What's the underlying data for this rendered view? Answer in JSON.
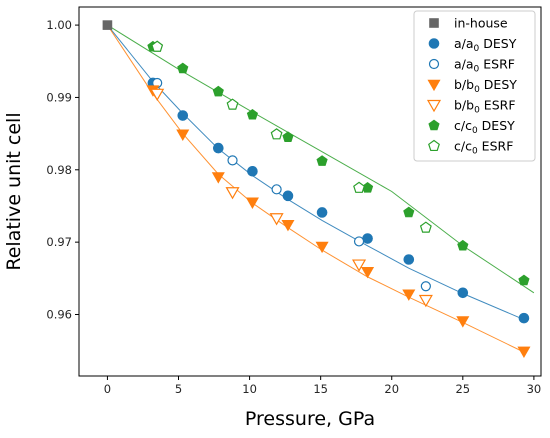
{
  "chart_data": {
    "type": "scatter",
    "title": "",
    "xlabel": "Pressure, GPa",
    "ylabel": "Relative unit cell",
    "xlim": [
      -2,
      30.5
    ],
    "ylim": [
      0.9515,
      1.0025
    ],
    "xticks": [
      0,
      5,
      10,
      15,
      20,
      25,
      30
    ],
    "xtick_labels": [
      "0",
      "5",
      "10",
      "15",
      "20",
      "25",
      "30"
    ],
    "yticks": [
      0.96,
      0.97,
      0.98,
      0.99,
      1.0
    ],
    "ytick_labels": [
      "0.96",
      "0.97",
      "0.98",
      "0.99",
      "1.00"
    ],
    "grid": false,
    "legend_position": "top-right",
    "colors": {
      "grey": "#666666",
      "blue": "#1f77b4",
      "orange": "#ff7f0e",
      "green": "#2ca02c"
    },
    "series": [
      {
        "name": "in-house",
        "label_main": "in-house",
        "label_sub": "",
        "label_tail": "",
        "marker": "square",
        "filled": true,
        "color": "#666666",
        "x": [
          0
        ],
        "y": [
          1.0
        ]
      },
      {
        "name": "a/a0 DESY",
        "label_main": "a/a",
        "label_sub": "0",
        "label_tail": " DESY",
        "marker": "circle",
        "filled": true,
        "color": "#1f77b4",
        "x": [
          3.2,
          5.3,
          7.8,
          10.2,
          12.7,
          15.1,
          18.3,
          21.2,
          25.0,
          29.3
        ],
        "y": [
          0.992,
          0.9875,
          0.983,
          0.9798,
          0.9764,
          0.9741,
          0.9705,
          0.9676,
          0.963,
          0.9595
        ]
      },
      {
        "name": "a/a0 ESRF",
        "label_main": "a/a",
        "label_sub": "0",
        "label_tail": " ESRF",
        "marker": "circle",
        "filled": false,
        "color": "#1f77b4",
        "x": [
          3.5,
          8.8,
          11.9,
          17.7,
          22.4
        ],
        "y": [
          0.992,
          0.9813,
          0.9773,
          0.9701,
          0.9639
        ]
      },
      {
        "name": "b/b0 DESY",
        "label_main": "b/b",
        "label_sub": "0",
        "label_tail": " DESY",
        "marker": "triangle-down",
        "filled": true,
        "color": "#ff7f0e",
        "x": [
          3.2,
          5.3,
          7.8,
          10.2,
          12.7,
          15.1,
          18.3,
          21.2,
          25.0,
          29.3
        ],
        "y": [
          0.991,
          0.9849,
          0.979,
          0.9755,
          0.9724,
          0.9694,
          0.9659,
          0.9628,
          0.9591,
          0.9549
        ]
      },
      {
        "name": "b/b0 ESRF",
        "label_main": "b/b",
        "label_sub": "0",
        "label_tail": " ESRF",
        "marker": "triangle-down",
        "filled": false,
        "color": "#ff7f0e",
        "x": [
          3.5,
          8.8,
          11.9,
          17.7,
          22.4
        ],
        "y": [
          0.9905,
          0.9769,
          0.9733,
          0.9669,
          0.962
        ]
      },
      {
        "name": "c/c0 DESY",
        "label_main": "c/c",
        "label_sub": "0",
        "label_tail": " DESY",
        "marker": "pentagon",
        "filled": true,
        "color": "#2ca02c",
        "x": [
          3.2,
          5.3,
          7.8,
          10.2,
          12.7,
          15.1,
          18.3,
          21.2,
          25.0,
          29.3
        ],
        "y": [
          0.997,
          0.994,
          0.9908,
          0.9876,
          0.9845,
          0.9812,
          0.9775,
          0.9741,
          0.9695,
          0.9647
        ]
      },
      {
        "name": "c/c0 ESRF",
        "label_main": "c/c",
        "label_sub": "0",
        "label_tail": " ESRF",
        "marker": "pentagon",
        "filled": false,
        "color": "#2ca02c",
        "x": [
          3.5,
          8.8,
          11.9,
          17.7,
          22.4
        ],
        "y": [
          0.997,
          0.989,
          0.9849,
          0.9775,
          0.972
        ]
      }
    ],
    "fit_lines": [
      {
        "color": "#1f77b4",
        "x": [
          0,
          3.2,
          5.3,
          7.8,
          10.2,
          12.7,
          15.1,
          18.3,
          21.2,
          25.0,
          29.3
        ],
        "y": [
          1.0,
          0.9922,
          0.9878,
          0.9829,
          0.9792,
          0.9759,
          0.973,
          0.9695,
          0.9664,
          0.9629,
          0.9593
        ]
      },
      {
        "color": "#ff7f0e",
        "x": [
          0,
          3.2,
          5.3,
          7.8,
          10.2,
          12.7,
          15.1,
          18.3,
          21.2,
          25.0,
          29.3
        ],
        "y": [
          1.0,
          0.9905,
          0.985,
          0.9794,
          0.9754,
          0.972,
          0.9689,
          0.9652,
          0.9624,
          0.9589,
          0.9548
        ]
      },
      {
        "color": "#2ca02c",
        "x": [
          0,
          5,
          10,
          15,
          20,
          25,
          30
        ],
        "y": [
          1.0,
          0.9939,
          0.9882,
          0.9826,
          0.977,
          0.9695,
          0.963
        ]
      }
    ]
  }
}
